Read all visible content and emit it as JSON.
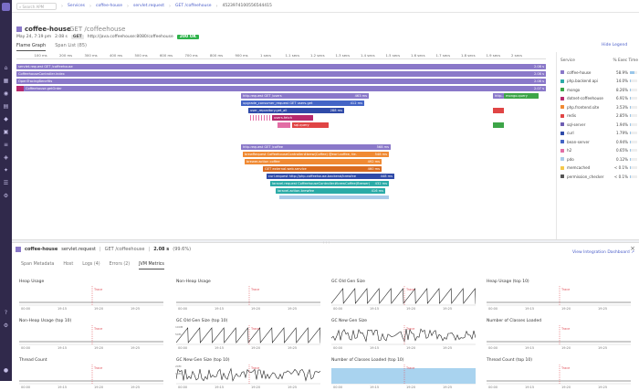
{
  "colors": {
    "purple": "#8a78c9",
    "purple_dark": "#6d5db2",
    "magenta": "#b7296d",
    "blue": "#4364c6",
    "navy": "#2f4aa8",
    "orange": "#f08a33",
    "orange_dark": "#d96b20",
    "red": "#e04545",
    "teal": "#2baba7",
    "green": "#3da548",
    "pink": "#e26ea5",
    "lightblue": "#a9cbe9",
    "yellow": "#f4c84a",
    "trace_red": "#e0555e"
  },
  "topbar": {
    "search_placeholder": "Search APM",
    "crumbs": [
      "Services",
      "coffee-house",
      "servlet.request",
      "GET /coffeehouse"
    ],
    "trace_id": "4523974100556544415"
  },
  "header": {
    "service": "coffee-house",
    "resource": "GET /coffeehouse",
    "date": "May 24, 7:19 pm",
    "duration": "2.08 s",
    "method": "GET",
    "url": "http://java.coffeehouse:8080/coffeehouse",
    "status": "200 OK"
  },
  "tabs": [
    "Flame Graph",
    "Span List (85)"
  ],
  "hide_legend": "Hide Legend",
  "axis_ticks": [
    "100 ms",
    "200 ms",
    "300 ms",
    "400 ms",
    "500 ms",
    "600 ms",
    "700 ms",
    "800 ms",
    "900 ms",
    "1 secs",
    "1.1 secs",
    "1.2 secs",
    "1.3 secs",
    "1.4 secs",
    "1.5 secs",
    "1.6 secs",
    "1.7 secs",
    "1.8 secs",
    "1.9 secs",
    "2 secs"
  ],
  "spans": [
    {
      "label": "servlet.request GET /coffeehouse",
      "dur": "2.08 s"
    },
    {
      "label": "CoffeehouseController.index",
      "dur": "2.08 s"
    },
    {
      "label": "OpenTracingBenefits",
      "dur": "2.08 s"
    },
    {
      "label": "Coffeehouse.getOrder",
      "dur": "2.07 s"
    },
    {
      "label": "http.request GET /users",
      "dur": "463 ms"
    },
    {
      "label": "upgrade_consumer_request GET users.get",
      "dur": "412 ms"
    },
    {
      "label": "user_repository.get_all",
      "dur": "288 ms"
    },
    {
      "label": "users.fetch",
      "dur": ""
    },
    {
      "label": "sql.query",
      "dur": ""
    },
    {
      "label": "http.request GET /coffee",
      "dur": "568 ms"
    },
    {
      "label": "brewRequest CoffeehouseController#brew(Coffee) @earl.coffee, tle.",
      "dur": "548 ms"
    },
    {
      "label": "brewer.action coffee",
      "dur": "492 ms"
    },
    {
      "label": "GET external.web.service",
      "dur": "460 ms"
    },
    {
      "label": "curl.request http://php-coffeehouse-backend/brewfee",
      "dur": "448 ms"
    },
    {
      "label": "laravel.request CoffeehouseController#brewCoffee(Brewer)",
      "dur": "432 ms"
    },
    {
      "label": "laravel.action.brewfee",
      "dur": "416 ms"
    },
    {
      "label": "http..",
      "dur": ""
    },
    {
      "label": "mongo.query",
      "dur": ""
    }
  ],
  "legend": {
    "col1": "Service",
    "col2": "% Exec Time",
    "rows": [
      {
        "name": "coffee-house",
        "pct": "58.9%",
        "frac": 0.589,
        "color": "#8a78c9"
      },
      {
        "name": "php.backend.api",
        "pct": "14.0%",
        "frac": 0.14,
        "color": "#2baba7"
      },
      {
        "name": "mongo",
        "pct": "8.26%",
        "frac": 0.0826,
        "color": "#3da548"
      },
      {
        "name": "dotnet-coffeehouse",
        "pct": "6.91%",
        "frac": 0.0691,
        "color": "#b7296d"
      },
      {
        "name": "php.frontend.site",
        "pct": "3.53%",
        "frac": 0.0353,
        "color": "#f08a33"
      },
      {
        "name": "redis",
        "pct": "2.85%",
        "frac": 0.0285,
        "color": "#e04545"
      },
      {
        "name": "sql-server",
        "pct": "1.94%",
        "frac": 0.0194,
        "color": "#6d5db2"
      },
      {
        "name": "curl",
        "pct": "1.79%",
        "frac": 0.0179,
        "color": "#2f4aa8"
      },
      {
        "name": "bean-server",
        "pct": "0.94%",
        "frac": 0.0094,
        "color": "#4364c6"
      },
      {
        "name": "h2",
        "pct": "0.65%",
        "frac": 0.0065,
        "color": "#e26ea5"
      },
      {
        "name": "pdo",
        "pct": "0.12%",
        "frac": 0.0012,
        "color": "#a9cbe9"
      },
      {
        "name": "memcached",
        "pct": "< 0.1%",
        "frac": 0.0005,
        "color": "#f4c84a"
      },
      {
        "name": "permission_checker",
        "pct": "< 0.1%",
        "frac": 0.0005,
        "color": "#555555"
      }
    ]
  },
  "panel": {
    "service": "coffee-house",
    "op": "servlet.request",
    "resource": "GET /coffeehouse",
    "dur": "2.08 s",
    "pct": "(99.6%)",
    "tabs": [
      "Span Metadata",
      "Host",
      "Logs (4)",
      "Errors (2)",
      "JVM Metrics"
    ],
    "view_dash": "View Integration Dashboard"
  },
  "metrics": [
    {
      "title": "Heap Usage",
      "kind": "flat"
    },
    {
      "title": "Non-Heap Usage",
      "kind": "flat"
    },
    {
      "title": "GC Old Gen Size",
      "kind": "saw"
    },
    {
      "title": "Heap Usage (top 10)",
      "kind": "flat"
    },
    {
      "title": "Non-Heap Usage (top 10)",
      "kind": "flat"
    },
    {
      "title": "GC Old Gen Size (top 10)",
      "kind": "saw"
    },
    {
      "title": "GC New Gen Size",
      "kind": "noise"
    },
    {
      "title": "Number of Classes Loaded",
      "kind": "flat"
    },
    {
      "title": "Thread Count",
      "kind": "flat"
    },
    {
      "title": "GC New Gen Size (top 10)",
      "kind": "noise"
    },
    {
      "title": "Number of Classes Loaded (top 10)",
      "kind": "area"
    },
    {
      "title": "Thread Count (top 10)",
      "kind": "flat"
    }
  ],
  "metric_ticks": [
    "00:00",
    "19:15",
    "19:20",
    "19:25"
  ],
  "trace_label": "Trace",
  "gc_old_ylabels": [
    "100M",
    "50M"
  ],
  "gc_new_ylabels": [
    "20M",
    "10M"
  ],
  "icons": [
    "search-icon",
    "apm-icon",
    "dashboard-icon",
    "monitor-icon",
    "logs-icon",
    "infra-icon",
    "integrations-icon",
    "security-icon",
    "close-icon",
    "chevron-right-icon"
  ]
}
